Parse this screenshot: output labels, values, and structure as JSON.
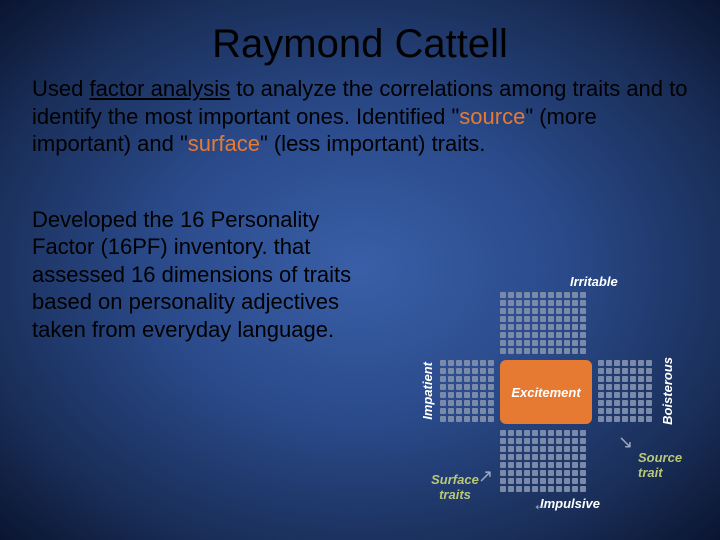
{
  "title": "Raymond Cattell",
  "para1_parts": {
    "p1": "Used ",
    "p2": "factor analysis",
    "p3": " to analyze the correlations among traits and to identify the most important ones. Identified \"",
    "p4": "source",
    "p5": "\" (more important) and \"",
    "p6": "surface",
    "p7": "\" (less important) traits."
  },
  "para2": "Developed the 16 Personality Factor (16PF) inventory. that assessed 16 dimensions of traits based on personality adjectives taken from everyday language.",
  "diagram": {
    "center": "Excitement",
    "top": "Irritable",
    "left": "Impatient",
    "right": "Boisterous",
    "bottom": "Impulsive",
    "surface": "Surface traits",
    "source": "Source trait",
    "colors": {
      "accent": "#e67a33",
      "dot": "#7a8aa8",
      "label_olive": "#b8c878",
      "label_white": "#ffffff"
    },
    "grid": {
      "rows_side": 8,
      "cols_side": 7,
      "rows_tall": 8,
      "cols_tall": 11
    }
  }
}
